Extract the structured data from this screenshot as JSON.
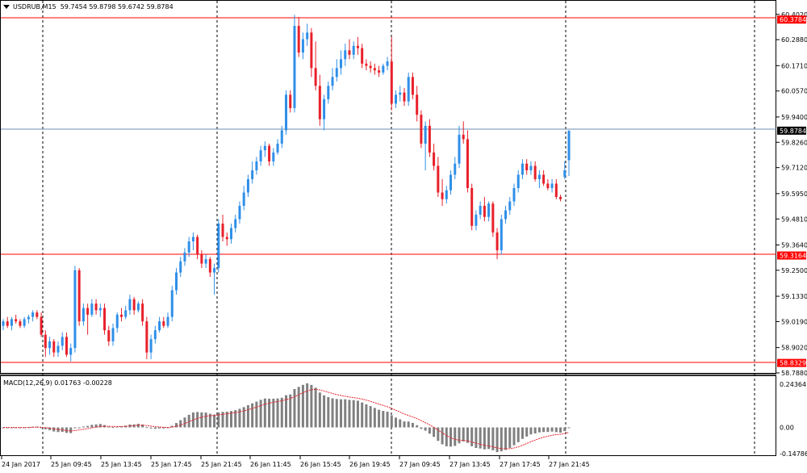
{
  "header": {
    "symbol": "USDRUB,M15",
    "ohlc": "59.7454 59.8798 59.6742 59.8784"
  },
  "macd": {
    "label": "MACD(12,26,9) 0.01763 -0.00228"
  },
  "colors": {
    "bull": "#2f8fe8",
    "bear": "#e8202a",
    "hline": "#ff0000",
    "current_line": "#6a8caf",
    "histogram": "#808080",
    "signal": "#e8202a"
  },
  "price_axis": {
    "labels": [
      "60.4020",
      "60.2880",
      "60.1710",
      "60.0570",
      "59.9400",
      "59.8260",
      "59.7120",
      "59.5950",
      "59.4810",
      "59.3640",
      "59.2500",
      "59.1330",
      "59.0190",
      "58.9020",
      "58.7880"
    ]
  },
  "macd_axis": {
    "labels": [
      "0.24364",
      "0.00",
      "-0.14786"
    ]
  },
  "level_badges": [
    {
      "value": "60.3784",
      "kind": "level"
    },
    {
      "value": "59.8784",
      "kind": "current"
    },
    {
      "value": "59.3164",
      "kind": "level"
    },
    {
      "value": "58.8329",
      "kind": "level"
    }
  ],
  "time_axis": {
    "labels": [
      "24 Jan 2017",
      "25 Jan 09:45",
      "25 Jan 13:45",
      "25 Jan 17:45",
      "25 Jan 21:45",
      "26 Jan 11:45",
      "26 Jan 15:45",
      "26 Jan 19:45",
      "27 Jan 09:45",
      "27 Jan 13:45",
      "27 Jan 17:45",
      "27 Jan 21:45"
    ]
  },
  "chart_data": {
    "type": "candlestick",
    "ylim": [
      58.788,
      60.412
    ],
    "candles": [
      [
        59.0,
        59.03,
        58.98,
        59.02
      ],
      [
        59.02,
        59.04,
        58.99,
        59.0
      ],
      [
        59.0,
        59.04,
        58.98,
        59.03
      ],
      [
        59.03,
        59.05,
        59.01,
        59.02
      ],
      [
        59.02,
        59.03,
        58.99,
        59.0
      ],
      [
        59.0,
        59.04,
        58.99,
        59.03
      ],
      [
        59.03,
        59.05,
        59.01,
        59.04
      ],
      [
        59.04,
        59.07,
        59.02,
        59.06
      ],
      [
        59.06,
        59.07,
        59.03,
        59.04
      ],
      [
        59.04,
        59.06,
        58.95,
        58.96
      ],
      [
        58.96,
        58.98,
        58.86,
        58.9
      ],
      [
        58.9,
        58.95,
        58.87,
        58.93
      ],
      [
        58.93,
        58.94,
        58.86,
        58.88
      ],
      [
        58.88,
        58.93,
        58.86,
        58.91
      ],
      [
        58.91,
        58.97,
        58.89,
        58.95
      ],
      [
        58.95,
        58.97,
        58.86,
        58.87
      ],
      [
        58.87,
        58.92,
        58.84,
        58.9
      ],
      [
        58.9,
        59.27,
        58.88,
        59.25
      ],
      [
        59.25,
        59.26,
        59.0,
        59.02
      ],
      [
        59.02,
        59.1,
        59.0,
        59.08
      ],
      [
        59.08,
        59.1,
        58.96,
        59.05
      ],
      [
        59.05,
        59.12,
        59.04,
        59.1
      ],
      [
        59.1,
        59.12,
        59.05,
        59.07
      ],
      [
        59.07,
        59.1,
        59.04,
        59.08
      ],
      [
        59.08,
        59.1,
        58.96,
        58.98
      ],
      [
        58.98,
        59.0,
        58.91,
        58.93
      ],
      [
        58.93,
        59.01,
        58.91,
        58.99
      ],
      [
        58.99,
        59.06,
        58.97,
        59.05
      ],
      [
        59.05,
        59.08,
        59.02,
        59.04
      ],
      [
        59.04,
        59.09,
        59.03,
        59.07
      ],
      [
        59.07,
        59.14,
        59.05,
        59.12
      ],
      [
        59.12,
        59.13,
        59.05,
        59.07
      ],
      [
        59.07,
        59.11,
        59.06,
        59.1
      ],
      [
        59.1,
        59.12,
        59.0,
        59.02
      ],
      [
        59.02,
        59.04,
        58.85,
        58.88
      ],
      [
        58.88,
        58.96,
        58.85,
        58.94
      ],
      [
        58.94,
        59.0,
        58.92,
        58.98
      ],
      [
        58.98,
        59.04,
        58.97,
        59.02
      ],
      [
        59.02,
        59.04,
        58.99,
        59.0
      ],
      [
        59.0,
        59.06,
        58.99,
        59.04
      ],
      [
        59.04,
        59.18,
        59.02,
        59.16
      ],
      [
        59.16,
        59.26,
        59.14,
        59.24
      ],
      [
        59.24,
        59.31,
        59.22,
        59.29
      ],
      [
        59.29,
        59.35,
        59.27,
        59.33
      ],
      [
        59.33,
        59.4,
        59.31,
        59.38
      ],
      [
        59.38,
        59.42,
        59.34,
        59.4
      ],
      [
        59.4,
        59.41,
        59.3,
        59.32
      ],
      [
        59.32,
        59.34,
        59.26,
        59.28
      ],
      [
        59.28,
        59.32,
        59.26,
        59.3
      ],
      [
        59.3,
        59.31,
        59.22,
        59.24
      ],
      [
        59.24,
        59.28,
        59.14,
        59.26
      ],
      [
        59.26,
        59.48,
        59.24,
        59.46
      ],
      [
        59.46,
        59.5,
        59.38,
        59.4
      ],
      [
        59.4,
        59.42,
        59.36,
        59.39
      ],
      [
        59.39,
        59.46,
        59.37,
        59.44
      ],
      [
        59.44,
        59.5,
        59.42,
        59.48
      ],
      [
        59.48,
        59.56,
        59.46,
        59.54
      ],
      [
        59.54,
        59.63,
        59.52,
        59.6
      ],
      [
        59.6,
        59.68,
        59.58,
        59.66
      ],
      [
        59.66,
        59.74,
        59.64,
        59.7
      ],
      [
        59.7,
        59.76,
        59.68,
        59.74
      ],
      [
        59.74,
        59.81,
        59.72,
        59.79
      ],
      [
        59.79,
        59.83,
        59.76,
        59.81
      ],
      [
        59.81,
        59.82,
        59.72,
        59.74
      ],
      [
        59.74,
        59.8,
        59.72,
        59.78
      ],
      [
        59.78,
        59.84,
        59.77,
        59.82
      ],
      [
        59.82,
        59.9,
        59.8,
        59.88
      ],
      [
        59.88,
        60.06,
        59.86,
        60.04
      ],
      [
        60.04,
        60.06,
        59.96,
        59.98
      ],
      [
        59.98,
        60.4,
        59.96,
        60.35
      ],
      [
        60.35,
        60.39,
        60.21,
        60.23
      ],
      [
        60.23,
        60.32,
        60.2,
        60.29
      ],
      [
        60.29,
        60.36,
        60.26,
        60.32
      ],
      [
        60.32,
        60.34,
        60.12,
        60.16
      ],
      [
        60.16,
        60.28,
        60.06,
        60.08
      ],
      [
        60.08,
        60.13,
        59.9,
        59.93
      ],
      [
        59.93,
        60.04,
        59.88,
        60.02
      ],
      [
        60.02,
        60.1,
        60.0,
        60.08
      ],
      [
        60.08,
        60.16,
        60.06,
        60.12
      ],
      [
        60.12,
        60.2,
        60.1,
        60.16
      ],
      [
        60.16,
        60.24,
        60.13,
        60.2
      ],
      [
        60.2,
        60.27,
        60.17,
        60.24
      ],
      [
        60.24,
        60.29,
        60.2,
        60.22
      ],
      [
        60.22,
        60.28,
        60.2,
        60.26
      ],
      [
        60.26,
        60.3,
        60.22,
        60.25
      ],
      [
        60.25,
        60.27,
        60.16,
        60.18
      ],
      [
        60.18,
        60.2,
        60.15,
        60.17
      ],
      [
        60.17,
        60.19,
        60.14,
        60.16
      ],
      [
        60.16,
        60.18,
        60.13,
        60.15
      ],
      [
        60.15,
        60.17,
        60.12,
        60.14
      ],
      [
        60.14,
        60.18,
        60.13,
        60.17
      ],
      [
        60.17,
        60.21,
        60.15,
        60.19
      ],
      [
        60.19,
        60.3,
        59.97,
        60.0
      ],
      [
        60.0,
        60.06,
        59.98,
        60.04
      ],
      [
        60.04,
        60.08,
        60.01,
        60.05
      ],
      [
        60.05,
        60.07,
        59.99,
        60.01
      ],
      [
        60.01,
        60.14,
        59.99,
        60.12
      ],
      [
        60.12,
        60.14,
        60.02,
        60.04
      ],
      [
        60.04,
        60.08,
        59.92,
        59.95
      ],
      [
        59.95,
        59.97,
        59.8,
        59.82
      ],
      [
        59.82,
        59.92,
        59.7,
        59.9
      ],
      [
        59.9,
        59.93,
        59.76,
        59.78
      ],
      [
        59.78,
        59.82,
        59.7,
        59.72
      ],
      [
        59.72,
        59.76,
        59.58,
        59.6
      ],
      [
        59.6,
        59.66,
        59.54,
        59.57
      ],
      [
        59.57,
        59.63,
        59.55,
        59.61
      ],
      [
        59.61,
        59.7,
        59.59,
        59.68
      ],
      [
        59.68,
        59.76,
        59.66,
        59.73
      ],
      [
        59.73,
        59.9,
        59.71,
        59.86
      ],
      [
        59.86,
        59.92,
        59.82,
        59.84
      ],
      [
        59.84,
        59.88,
        59.6,
        59.62
      ],
      [
        59.62,
        59.64,
        59.43,
        59.45
      ],
      [
        59.45,
        59.52,
        59.43,
        59.5
      ],
      [
        59.5,
        59.56,
        59.48,
        59.54
      ],
      [
        59.54,
        59.58,
        59.47,
        59.49
      ],
      [
        59.49,
        59.56,
        59.47,
        59.55
      ],
      [
        59.55,
        59.56,
        59.4,
        59.42
      ],
      [
        59.42,
        59.44,
        59.3,
        59.34
      ],
      [
        59.34,
        59.5,
        59.32,
        59.48
      ],
      [
        59.48,
        59.54,
        59.46,
        59.52
      ],
      [
        59.52,
        59.58,
        59.5,
        59.56
      ],
      [
        59.56,
        59.64,
        59.54,
        59.62
      ],
      [
        59.62,
        59.7,
        59.6,
        59.68
      ],
      [
        59.68,
        59.75,
        59.66,
        59.73
      ],
      [
        59.73,
        59.75,
        59.68,
        59.7
      ],
      [
        59.7,
        59.74,
        59.68,
        59.72
      ],
      [
        59.72,
        59.74,
        59.65,
        59.66
      ],
      [
        59.66,
        59.7,
        59.62,
        59.68
      ],
      [
        59.68,
        59.7,
        59.63,
        59.64
      ],
      [
        59.64,
        59.66,
        59.61,
        59.62
      ],
      [
        59.62,
        59.66,
        59.6,
        59.64
      ],
      [
        59.64,
        59.66,
        59.57,
        59.58
      ],
      [
        59.58,
        59.59,
        59.56,
        59.57
      ],
      [
        59.67,
        59.74,
        59.66,
        59.7
      ],
      [
        59.7454,
        59.8798,
        59.6742,
        59.8784
      ]
    ]
  }
}
